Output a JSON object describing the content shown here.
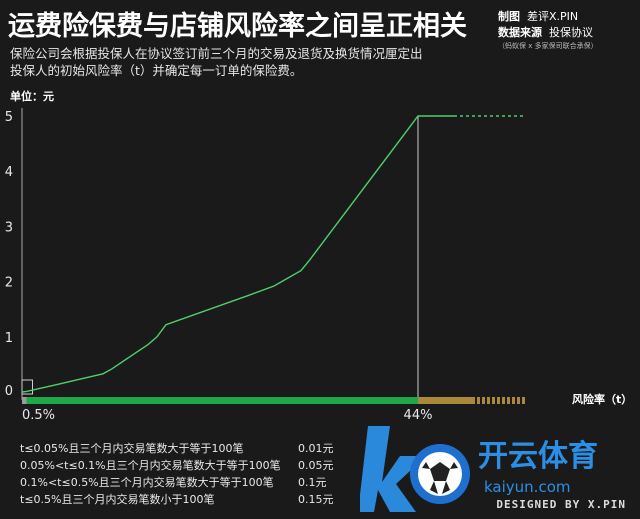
{
  "header": {
    "title": "运费险保费与店铺风险率之间呈正相关",
    "credit_label_1": "制图",
    "credit_value_1": "差评X.PIN",
    "credit_label_2": "数据来源",
    "credit_value_2": "投保协议",
    "credit_note": "（蚂蚁保 x 多家保司联合承保）",
    "subtitle": "保险公司会根据投保人在协议签订前三个月的交易及退货及换货情况厘定出投保人的初始风险率（t）并确定每一订单的保险费。",
    "unit": "单位：元"
  },
  "chart_data": {
    "type": "line",
    "xlabel": "风险率（t）",
    "ylabel": "单位：元",
    "yticks": [
      0,
      1,
      2,
      3,
      4,
      5
    ],
    "ylim": [
      0,
      5
    ],
    "xlim": [
      0,
      60
    ],
    "x_markers": [
      {
        "label": "0.5%",
        "x": 0.5
      },
      {
        "label": "44%",
        "x": 44
      }
    ],
    "series": [
      {
        "x": [
          0,
          0.5,
          4,
          9,
          10,
          14,
          15,
          16,
          25,
          28,
          31,
          32,
          44,
          48
        ],
        "y": [
          0,
          0.01,
          0.14,
          0.33,
          0.42,
          0.86,
          1.0,
          1.22,
          1.74,
          1.92,
          2.2,
          2.4,
          5.0,
          5.0
        ]
      },
      {
        "x": [
          48,
          56
        ],
        "y": [
          5.0,
          5.0
        ]
      }
    ],
    "x_bands": [
      {
        "from": 0,
        "to": 0.5,
        "color": "#9a9a9a"
      },
      {
        "from": 0.5,
        "to": 44,
        "color": "#1fa84a"
      },
      {
        "from": 44,
        "to": 50,
        "color": "#a88a3a"
      },
      {
        "from": 50,
        "to": 56,
        "color": "#a88a3a",
        "pattern": "dashed"
      }
    ],
    "colors": {
      "line": "#4ed06a",
      "axis": "#aaaaaa",
      "marker_line": "#cfcfcf"
    }
  },
  "legend_table": [
    {
      "condition": "t≤0.05%且三个月内交易笔数大于等于100笔",
      "price": "0.01元"
    },
    {
      "condition": "0.05%<t≤0.1%且三个月内交易笔数大于等于100笔",
      "price": "0.05元"
    },
    {
      "condition": "0.1%<t≤0.5%且三个月内交易笔数大于等于100笔",
      "price": "0.1元"
    },
    {
      "condition": "t≤0.5%且三个月内交易笔数小于100笔",
      "price": "0.15元"
    }
  ],
  "brand": {
    "logo_text": "开云体育",
    "logo_sub": "kaiyun.com",
    "designed_by": "DESIGNED BY X.PIN"
  }
}
